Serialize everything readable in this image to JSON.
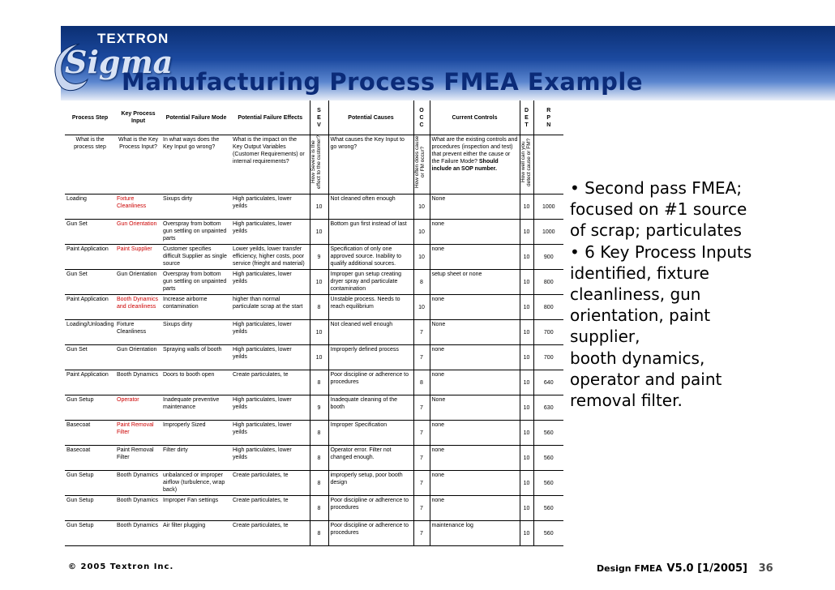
{
  "logo": {
    "brand": "TEXTRON",
    "product": "Sigma"
  },
  "title": "Manufacturing Process FMEA Example",
  "table": {
    "headers": {
      "step": "Process Step",
      "input": "Key Process Input",
      "mode": "Potential Failure Mode",
      "effects": "Potential Failure Effects",
      "sev": [
        "S",
        "E",
        "V"
      ],
      "causes": "Potential Causes",
      "occ": [
        "O",
        "C",
        "C"
      ],
      "controls": "Current Controls",
      "det": [
        "D",
        "E",
        "T"
      ],
      "rpn": [
        "R",
        "P",
        "N"
      ]
    },
    "subheaders": {
      "step": "What is the process step",
      "input": "What is the Key Process Input?",
      "mode": "In what ways does the Key Input go wrong?",
      "effects": "What is the impact on the Key Output Variables (Customer Requirements) or internal requirements?",
      "sev": "How Severe is the effect to the customer?",
      "causes": "What causes the Key Input to go wrong?",
      "occ": "How often does cause or FM occur?",
      "controls_a": "What are the existing controls and procedures (inspection and test) that prevent either the cause or the Failure Mode?",
      "controls_b": "Should include an SOP number.",
      "det": "How well can you detect cause or FM?"
    },
    "rows": [
      {
        "step": "Loading",
        "input": "Fixture Cleanliness",
        "input_red": true,
        "mode": "Sixups dirty",
        "effects": "High particulates, lower yeilds",
        "sev": "10",
        "causes": "Not cleaned often enough",
        "occ": "10",
        "controls": "None",
        "det": "10",
        "rpn": "1000"
      },
      {
        "step": "Gun Set",
        "input": "Gun Orientation",
        "input_red": true,
        "mode": "Overspray from bottom gun settling on unpainted parts",
        "effects": "High particulates, lower yeilds",
        "sev": "10",
        "causes": "Bottom gun first instead of last",
        "occ": "10",
        "controls": "none",
        "det": "10",
        "rpn": "1000"
      },
      {
        "step": "Paint Application",
        "input": "Paint Supplier",
        "input_red": true,
        "mode": "Customer specifies difficult Supplier as single source",
        "effects": "Lower yeilds, lower transfer efficiency, higher costs, poor service (frieght and material)",
        "sev": "9",
        "causes": "Specification of only one approved source. Inability to qualify additional sources.",
        "occ": "10",
        "controls": "none",
        "det": "10",
        "rpn": "900"
      },
      {
        "step": "Gun Set",
        "input": "Gun Orientation",
        "input_red": false,
        "mode": "Overspray from bottom gun settling on unpainted parts",
        "effects": "High particulates, lower yeilds",
        "sev": "10",
        "causes": "Improper gun setup creating dryer spray and particulate contamination",
        "occ": "8",
        "controls": "setup sheet or none",
        "det": "10",
        "rpn": "800"
      },
      {
        "step": "Paint Application",
        "input": "Booth Dynamics and cleanliness",
        "input_red": true,
        "mode": "Increase airborne contamination",
        "effects": "higher than normal particulate scrap at the start",
        "sev": "8",
        "causes": "Unstable process. Needs to reach equilibrium",
        "occ": "10",
        "controls": "none",
        "det": "10",
        "rpn": "800"
      },
      {
        "step": "Loading/Unloading",
        "input": "Fixture Cleanliness",
        "input_red": false,
        "mode": "Sixups dirty",
        "effects": "High particulates, lower yeilds",
        "sev": "10",
        "causes": "Not cleaned well enough",
        "occ": "7",
        "controls": "None",
        "det": "10",
        "rpn": "700"
      },
      {
        "step": "Gun Set",
        "input": "Gun Orientation",
        "input_red": false,
        "mode": "Spraying walls of booth",
        "effects": "High particulates, lower yeilds",
        "sev": "10",
        "causes": "Improperly defined process",
        "occ": "7",
        "controls": "none",
        "det": "10",
        "rpn": "700"
      },
      {
        "step": "Paint Application",
        "input": "Booth Dynamics",
        "input_red": false,
        "mode": "Doors to booth open",
        "effects": "Create particulates, te",
        "sev": "8",
        "causes": "Poor discipline or adherence to procedures",
        "occ": "8",
        "controls": "none",
        "det": "10",
        "rpn": "640"
      },
      {
        "step": "Gun Setup",
        "input": "Operator",
        "input_red": true,
        "mode": "Inadequate preventive maintenance",
        "effects": "High particulates, lower yeilds",
        "sev": "9",
        "causes": "Inadequate cleaning of the booth",
        "occ": "7",
        "controls": "None",
        "det": "10",
        "rpn": "630"
      },
      {
        "step": "Basecoat",
        "input": "Paint Removal Filter",
        "input_red": true,
        "mode": "Improperly Sized",
        "effects": "High particulates, lower yeilds",
        "sev": "8",
        "causes": "Improper Specification",
        "occ": "7",
        "controls": "none",
        "det": "10",
        "rpn": "560"
      },
      {
        "step": "Basecoat",
        "input": "Paint Removal Filter",
        "input_red": false,
        "mode": "Filter dirty",
        "effects": "High particulates, lower yeilds",
        "sev": "8",
        "causes": "Operator error. Filter not changed enough.",
        "occ": "7",
        "controls": "none",
        "det": "10",
        "rpn": "560"
      },
      {
        "step": "Gun Setup",
        "input": "Booth Dynamics",
        "input_red": false,
        "mode": "unbalanced or improper airflow (turbulence, wrap back)",
        "effects": "Create particulates, te",
        "sev": "8",
        "causes": "improperly setup, poor booth design",
        "occ": "7",
        "controls": "none",
        "det": "10",
        "rpn": "560"
      },
      {
        "step": "Gun Setup",
        "input": "Booth Dynamics",
        "input_red": false,
        "mode": "Improper Fan settings",
        "effects": "Create particulates, te",
        "sev": "8",
        "causes": "Poor discipline or adherence to procedures",
        "occ": "7",
        "controls": "none",
        "det": "10",
        "rpn": "560"
      },
      {
        "step": "Gun Setup",
        "input": "Booth Dynamics",
        "input_red": false,
        "mode": "Air filter plugging",
        "effects": "Create particulates, te",
        "sev": "8",
        "causes": "Poor discipline or adherence to procedures",
        "occ": "7",
        "controls": "maintenance log",
        "det": "10",
        "rpn": "560"
      }
    ]
  },
  "side_text": [
    "• Second pass FMEA; focused on #1 source of scrap; particulates",
    "• 6 Key Process Inputs identified, fixture cleanliness, gun orientation, paint supplier,",
    "booth dynamics, operator and paint removal filter."
  ],
  "footer": {
    "copyright": "© 2005 Textron Inc.",
    "doc": "Design FMEA",
    "version": "V5.0 [1/2005]",
    "page": "36"
  }
}
